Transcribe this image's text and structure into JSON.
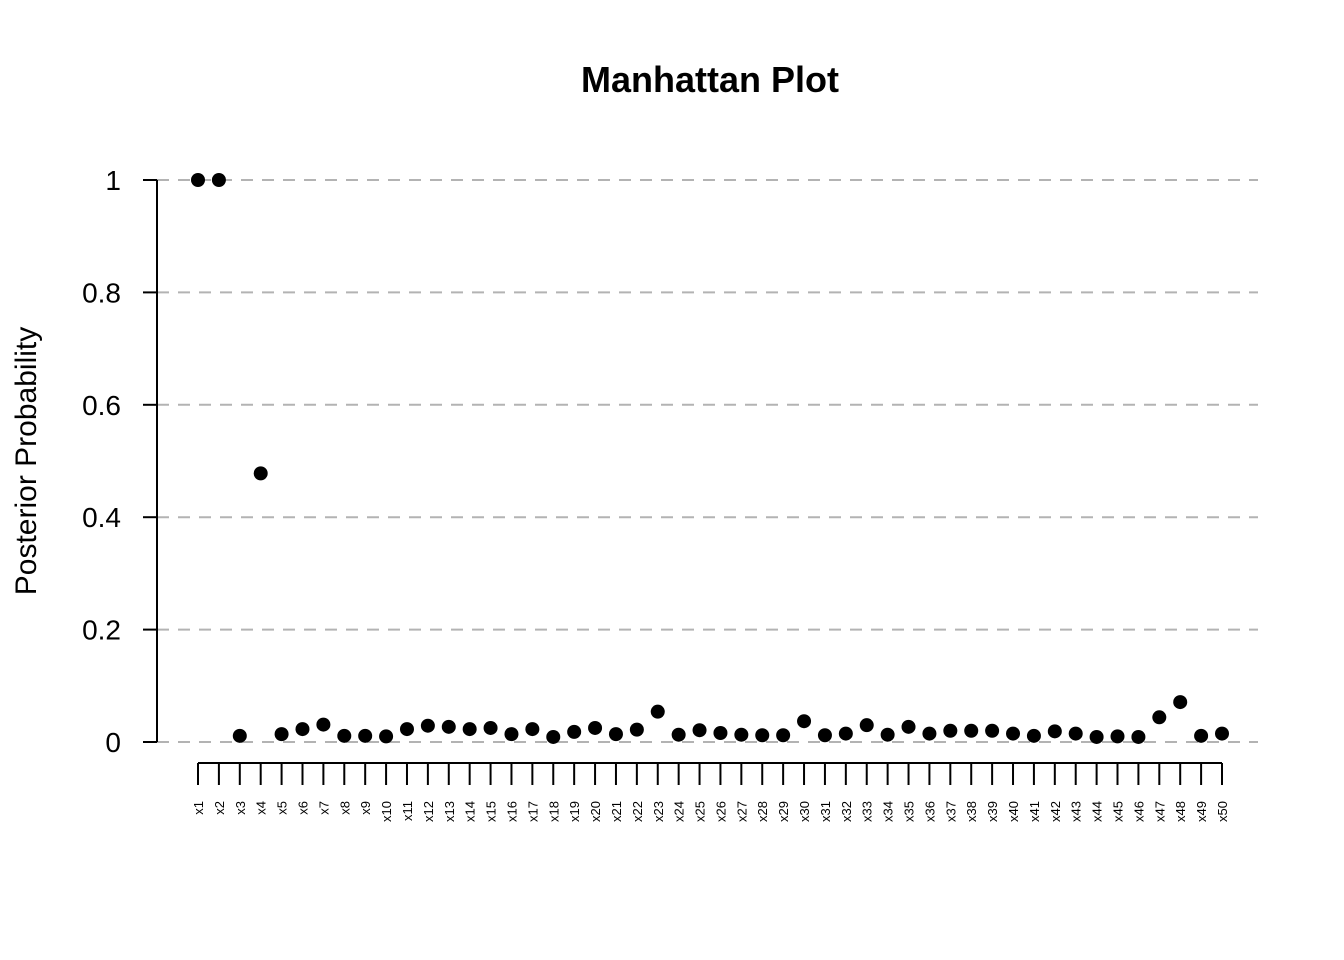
{
  "chart_data": {
    "type": "scatter",
    "title": "Manhattan Plot",
    "xlabel": "",
    "ylabel": "Posterior Probability",
    "ylim": [
      0,
      1
    ],
    "y_ticks": [
      "0",
      "0.2",
      "0.4",
      "0.6",
      "0.8",
      "1"
    ],
    "y_tick_values": [
      0,
      0.2,
      0.4,
      0.6,
      0.8,
      1
    ],
    "grid": "horizontal dashed",
    "categories": [
      "x1",
      "x2",
      "x3",
      "x4",
      "x5",
      "x6",
      "x7",
      "x8",
      "x9",
      "x10",
      "x11",
      "x12",
      "x13",
      "x14",
      "x15",
      "x16",
      "x17",
      "x18",
      "x19",
      "x20",
      "x21",
      "x22",
      "x23",
      "x24",
      "x25",
      "x26",
      "x27",
      "x28",
      "x29",
      "x30",
      "x31",
      "x32",
      "x33",
      "x34",
      "x35",
      "x36",
      "x37",
      "x38",
      "x39",
      "x40",
      "x41",
      "x42",
      "x43",
      "x44",
      "x45",
      "x46",
      "x47",
      "x48",
      "x49",
      "x50"
    ],
    "values": [
      1.0,
      1.0,
      0.011,
      0.478,
      0.014,
      0.023,
      0.031,
      0.011,
      0.011,
      0.01,
      0.023,
      0.029,
      0.027,
      0.023,
      0.025,
      0.014,
      0.023,
      0.009,
      0.018,
      0.025,
      0.014,
      0.022,
      0.054,
      0.013,
      0.021,
      0.016,
      0.013,
      0.012,
      0.012,
      0.037,
      0.012,
      0.015,
      0.03,
      0.013,
      0.027,
      0.015,
      0.02,
      0.02,
      0.02,
      0.015,
      0.011,
      0.019,
      0.015,
      0.009,
      0.01,
      0.009,
      0.044,
      0.071,
      0.011,
      0.015
    ],
    "colors": {
      "points": "#000000",
      "grid": "#b3b3b3",
      "axis": "#000000"
    }
  }
}
